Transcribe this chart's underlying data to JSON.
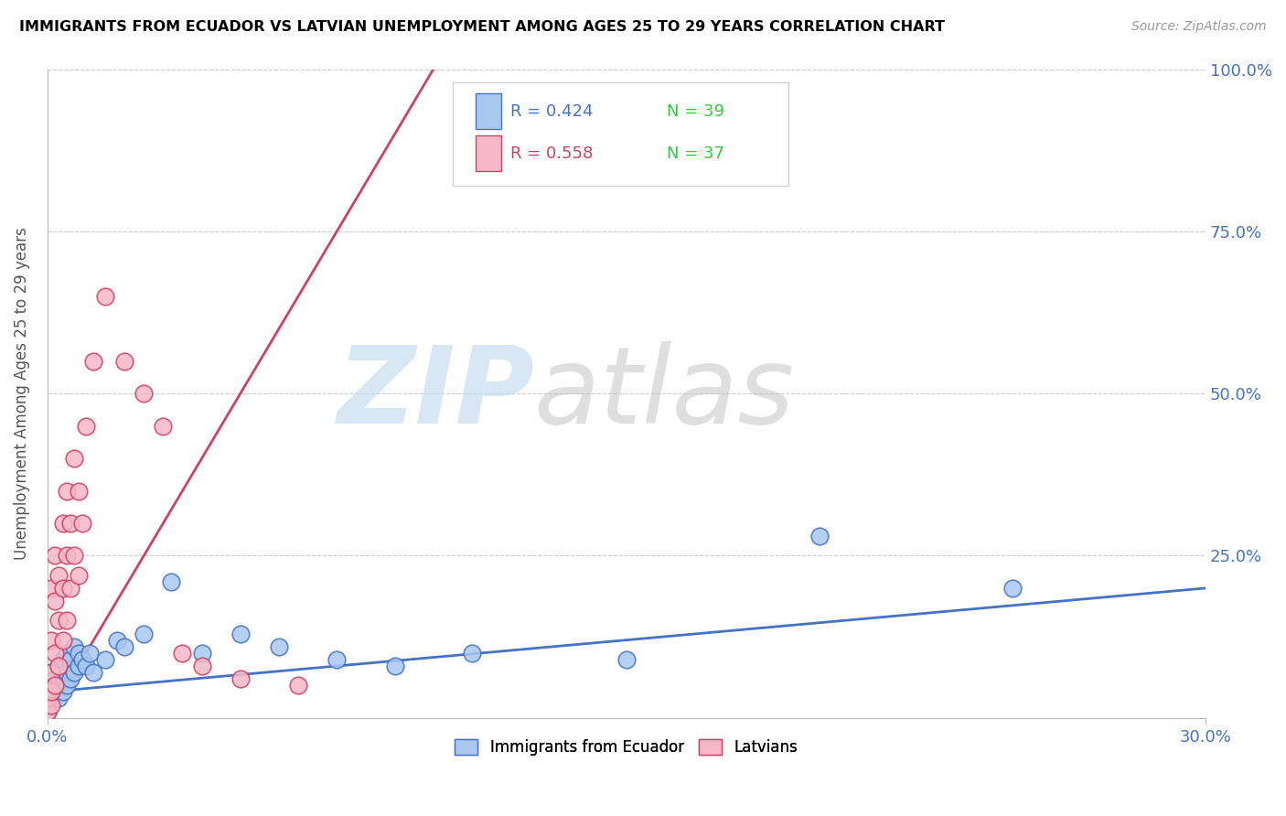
{
  "title": "IMMIGRANTS FROM ECUADOR VS LATVIAN UNEMPLOYMENT AMONG AGES 25 TO 29 YEARS CORRELATION CHART",
  "source": "Source: ZipAtlas.com",
  "yaxis_label": "Unemployment Among Ages 25 to 29 years",
  "legend1_r": "R = 0.424",
  "legend1_n": "N = 39",
  "legend2_r": "R = 0.558",
  "legend2_n": "N = 37",
  "legend_label1": "Immigrants from Ecuador",
  "legend_label2": "Latvians",
  "color_ecuador_fill": "#a8c8f0",
  "color_ecuador_edge": "#4472c4",
  "color_latvian_fill": "#f5b8c8",
  "color_latvian_edge": "#d04060",
  "color_r_value": "#4472c4",
  "color_n_value": "#2ecc40",
  "xlim": [
    0.0,
    0.3
  ],
  "ylim": [
    0.0,
    1.0
  ],
  "figsize": [
    14.06,
    8.92
  ],
  "dpi": 100,
  "ecuador_x": [
    0.0,
    0.001,
    0.001,
    0.001,
    0.002,
    0.002,
    0.003,
    0.003,
    0.003,
    0.004,
    0.004,
    0.004,
    0.005,
    0.005,
    0.005,
    0.006,
    0.006,
    0.007,
    0.007,
    0.008,
    0.008,
    0.009,
    0.01,
    0.011,
    0.012,
    0.015,
    0.018,
    0.02,
    0.025,
    0.032,
    0.04,
    0.05,
    0.06,
    0.075,
    0.09,
    0.11,
    0.15,
    0.2,
    0.25
  ],
  "ecuador_y": [
    0.01,
    0.03,
    0.05,
    0.07,
    0.04,
    0.06,
    0.03,
    0.05,
    0.08,
    0.04,
    0.06,
    0.09,
    0.05,
    0.07,
    0.1,
    0.06,
    0.09,
    0.07,
    0.11,
    0.08,
    0.1,
    0.09,
    0.08,
    0.1,
    0.07,
    0.09,
    0.12,
    0.11,
    0.13,
    0.21,
    0.1,
    0.13,
    0.11,
    0.09,
    0.08,
    0.1,
    0.09,
    0.28,
    0.2
  ],
  "latvian_x": [
    0.0,
    0.0,
    0.001,
    0.001,
    0.001,
    0.001,
    0.001,
    0.002,
    0.002,
    0.002,
    0.002,
    0.003,
    0.003,
    0.003,
    0.004,
    0.004,
    0.004,
    0.005,
    0.005,
    0.005,
    0.006,
    0.006,
    0.007,
    0.007,
    0.008,
    0.008,
    0.009,
    0.01,
    0.012,
    0.015,
    0.02,
    0.025,
    0.03,
    0.035,
    0.04,
    0.05,
    0.065
  ],
  "latvian_y": [
    0.01,
    0.03,
    0.02,
    0.04,
    0.07,
    0.12,
    0.2,
    0.05,
    0.1,
    0.18,
    0.25,
    0.08,
    0.15,
    0.22,
    0.12,
    0.2,
    0.3,
    0.15,
    0.25,
    0.35,
    0.2,
    0.3,
    0.25,
    0.4,
    0.22,
    0.35,
    0.3,
    0.45,
    0.55,
    0.65,
    0.55,
    0.5,
    0.45,
    0.1,
    0.08,
    0.06,
    0.05
  ],
  "line_ecuador_x0": 0.0,
  "line_ecuador_y0": 0.04,
  "line_ecuador_x1": 0.3,
  "line_ecuador_y1": 0.2,
  "line_latvian_x0": 0.0,
  "line_latvian_y0": 0.0,
  "line_latvian_x1": 0.1,
  "line_latvian_y1": 1.0
}
